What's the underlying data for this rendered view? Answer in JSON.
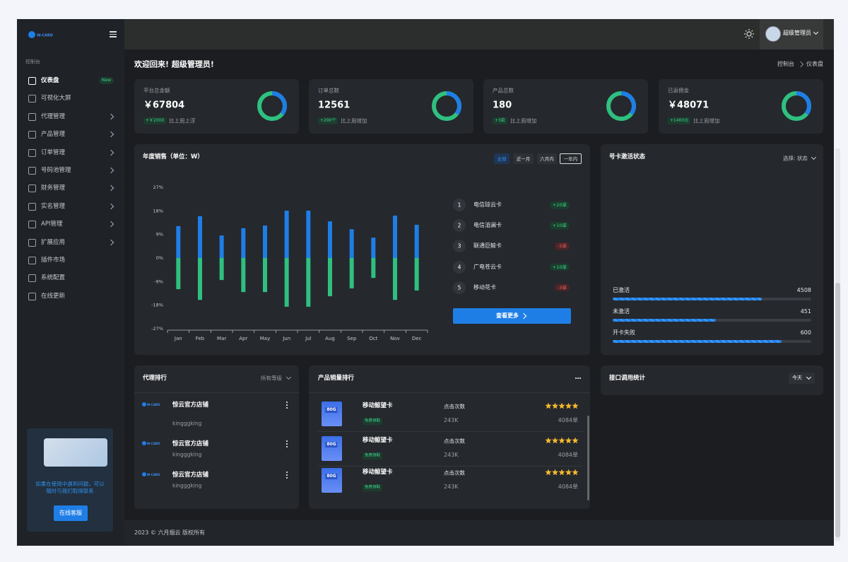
{
  "sidebar": {
    "logo": "W-CARD",
    "section": "控制台",
    "menu": [
      {
        "label": "仪表盘",
        "badge": "New"
      },
      {
        "label": "可视化大屏"
      },
      {
        "label": "代理管理",
        "submenu": true
      },
      {
        "label": "产品管理",
        "submenu": true
      },
      {
        "label": "订单管理",
        "submenu": true
      },
      {
        "label": "号码池管理",
        "submenu": true
      },
      {
        "label": "财务管理",
        "submenu": true
      },
      {
        "label": "实名管理",
        "submenu": true
      },
      {
        "label": "API管理",
        "submenu": true
      },
      {
        "label": "扩展应用",
        "submenu": true
      },
      {
        "label": "插件市场"
      },
      {
        "label": "系统配置"
      },
      {
        "label": "在线更新"
      }
    ],
    "help": {
      "text": "如果在使用中遇到问题，可以随时与我们取得联系",
      "button": "在线客服"
    }
  },
  "header": {
    "user": "超级管理员"
  },
  "page": {
    "greeting": "欢迎回来! 超级管理员!",
    "breadcrumb": [
      "控制台",
      "仪表盘"
    ]
  },
  "stats": [
    {
      "label": "平台总金额",
      "value": "￥67804",
      "delta": "+￥2000",
      "note": "比上周上浮"
    },
    {
      "label": "订单总数",
      "value": "12561",
      "delta": "+290个",
      "note": "比上周增加"
    },
    {
      "label": "产品总数",
      "value": "180",
      "delta": "+3款",
      "note": "比上周增加"
    },
    {
      "label": "已返佣金",
      "value": "￥48071",
      "delta": "+1400元",
      "note": "比上周增加"
    }
  ],
  "sales": {
    "title": "年度销售（单位：W）",
    "tabs": [
      "全部",
      "近一月",
      "六月内",
      "一年内"
    ],
    "ranking": [
      {
        "rank": 1,
        "name": "电信琼云卡",
        "delta": "+20单"
      },
      {
        "rank": 2,
        "name": "电信洎澜卡",
        "delta": "+10单"
      },
      {
        "rank": 3,
        "name": "联通巨鲸卡",
        "delta": "-5单"
      },
      {
        "rank": 4,
        "name": "广电苍云卡",
        "delta": "+10单"
      },
      {
        "rank": 5,
        "name": "移动花卡",
        "delta": "-3单"
      }
    ],
    "more": "查看更多"
  },
  "chart_data": {
    "type": "bar",
    "categories": [
      "Jan",
      "Feb",
      "Mar",
      "Apr",
      "May",
      "Jun",
      "Jul",
      "Aug",
      "Sep",
      "Oct",
      "Nov",
      "Dec"
    ],
    "series": [
      {
        "color": "#1f7ee6",
        "values": [
          12.2,
          16,
          8.6,
          11.4,
          12.4,
          18.1,
          18.1,
          14,
          11,
          7.8,
          16.2,
          12.7
        ]
      },
      {
        "color": "#2fc07f",
        "values": [
          -11.9,
          -16,
          -8.4,
          -13,
          -13,
          -18.6,
          -18.6,
          -14.6,
          -11.6,
          -7.6,
          -16,
          -12.4
        ]
      }
    ],
    "ylim": [
      -27,
      27
    ],
    "yticks": [
      {
        "value": 27,
        "label": "27%"
      },
      {
        "value": 18,
        "label": "18%"
      },
      {
        "value": 9,
        "label": "9%"
      },
      {
        "value": 0,
        "label": "0%"
      },
      {
        "value": -9,
        "label": "-9%"
      },
      {
        "value": -18,
        "label": "-18%"
      },
      {
        "value": -27,
        "label": "-27%"
      }
    ],
    "grid": false
  },
  "activation": {
    "title": "号卡激活状态",
    "filter": "选择: 状态",
    "items": [
      {
        "label": "已激活",
        "value": 4508,
        "progress": 75
      },
      {
        "label": "未激活",
        "value": 451,
        "progress": 52
      },
      {
        "label": "开卡失败",
        "value": 600,
        "progress": 85
      }
    ]
  },
  "agents": {
    "title": "代理排行",
    "filter": "所有等级",
    "rows": [
      {
        "logo": "W-CARD",
        "name": "惊云官方店铺",
        "handle": "kingggking"
      },
      {
        "logo": "W-CARD",
        "name": "惊云官方店铺",
        "handle": "kingggking"
      },
      {
        "logo": "W-CARD",
        "name": "惊云官方店铺",
        "handle": "kingggking"
      }
    ]
  },
  "products": {
    "title": "产品销量排行",
    "rows": [
      {
        "image_text": "80G",
        "name": "移动鲸望卡",
        "tag": "免费领取",
        "metric": "点击次数",
        "clicks": "243K",
        "orders": "4084单"
      },
      {
        "image_text": "80G",
        "name": "移动鲸望卡",
        "tag": "免费领取",
        "metric": "点击次数",
        "clicks": "243K",
        "orders": "4084单"
      },
      {
        "image_text": "80G",
        "name": "移动鲸望卡",
        "tag": "免费领取",
        "metric": "点击次数",
        "clicks": "243K",
        "orders": "4084单"
      }
    ]
  },
  "api": {
    "title": "接口调用统计",
    "filter": "今天"
  },
  "footer": {
    "text": "2023 © 六月烟云 版权所有"
  }
}
